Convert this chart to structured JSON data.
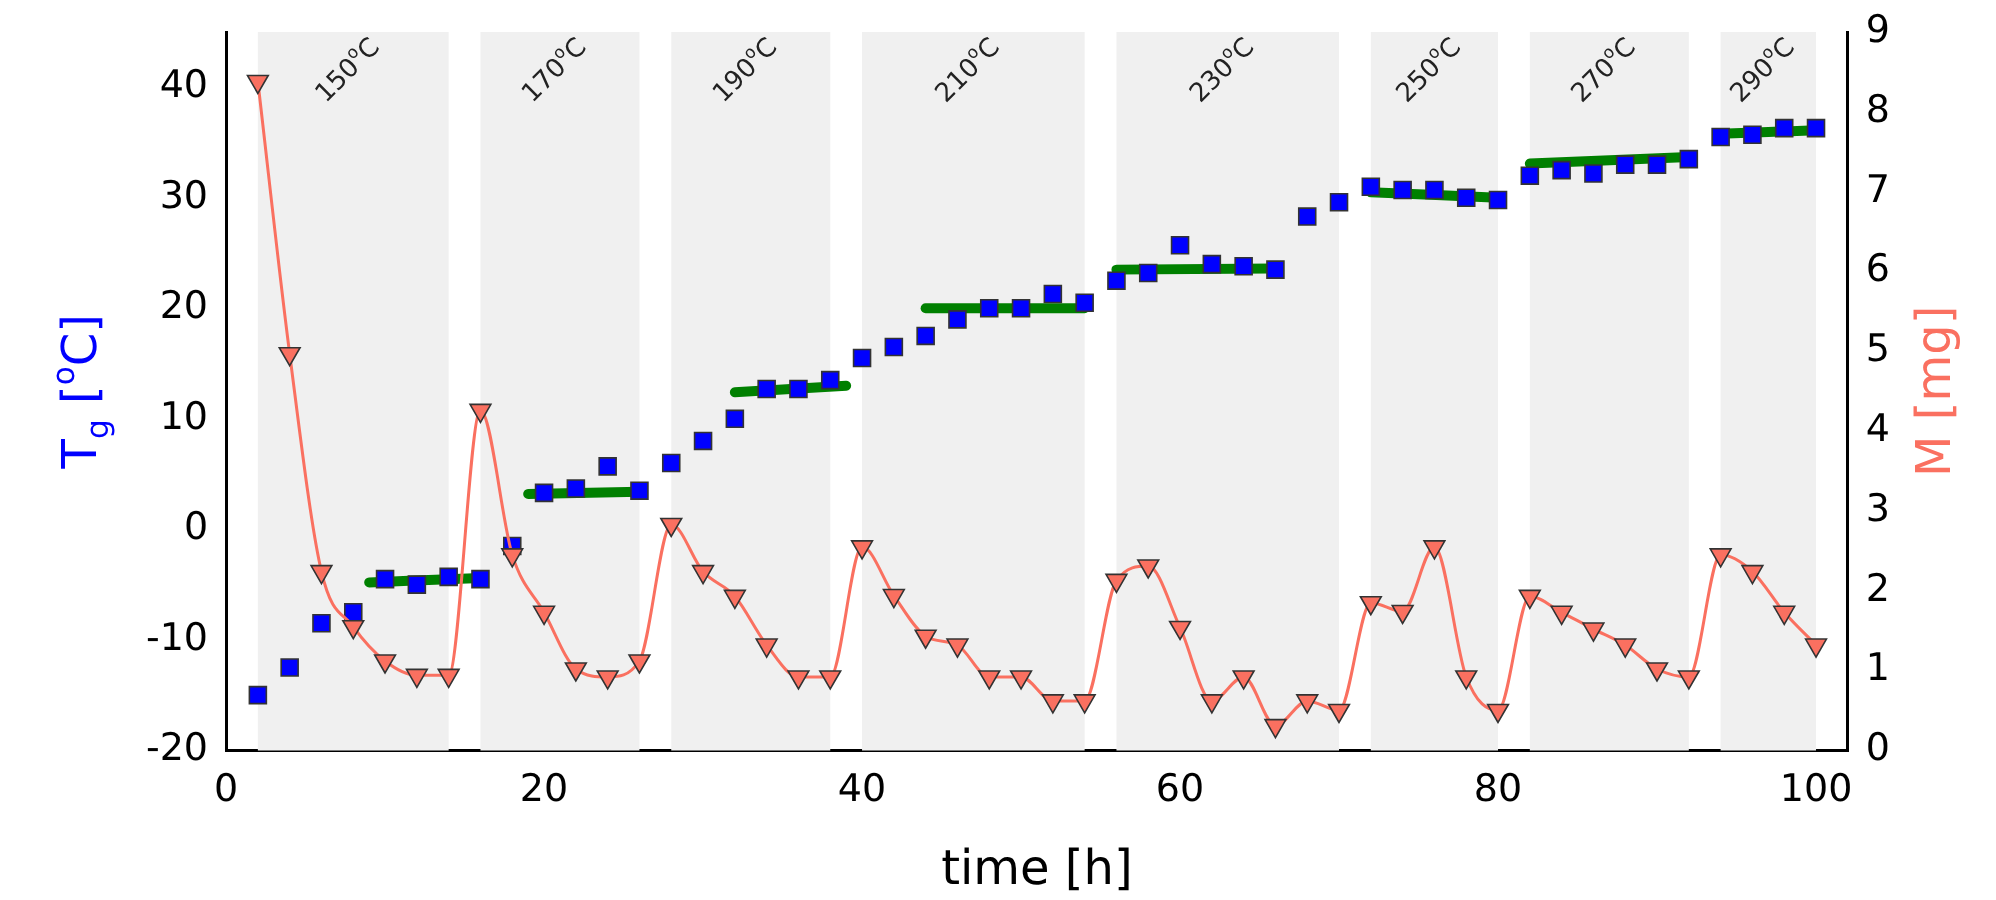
{
  "chart_data": {
    "type": "scatter",
    "xlabel": "time [h]",
    "ylabel": "T$_{g}$ [$^{o}$C]",
    "y2label": "M [mg]",
    "xlim": [
      0,
      102
    ],
    "xticks": [
      0,
      20,
      40,
      60,
      80,
      100
    ],
    "ylim": [
      -20,
      45
    ],
    "yticks": [
      -20,
      -10,
      0,
      10,
      20,
      30,
      40
    ],
    "y2lim": [
      0,
      9
    ],
    "y2ticks": [
      0,
      1,
      2,
      3,
      4,
      5,
      6,
      7,
      8,
      9
    ],
    "grid": false,
    "legend": false,
    "x": [
      2,
      4,
      6,
      8,
      10,
      12,
      14,
      16,
      18,
      20,
      22,
      24,
      26,
      28,
      30,
      32,
      34,
      36,
      38,
      40,
      42,
      44,
      46,
      48,
      50,
      52,
      54,
      56,
      58,
      60,
      62,
      64,
      66,
      68,
      70,
      72,
      74,
      76,
      78,
      80,
      82,
      84,
      86,
      88,
      90,
      92,
      94,
      96,
      98,
      100
    ],
    "series": [
      {
        "color": "#0000ff",
        "marker": "square",
        "values": [
          -15,
          -12.5,
          -8.5,
          -7.5,
          -4.5,
          -5,
          -4.3,
          -4.5,
          -1.5,
          3.3,
          3.7,
          5.7,
          3.5,
          6,
          8,
          10,
          12.7,
          12.7,
          13.5,
          15.5,
          16.5,
          17.5,
          19,
          20,
          20,
          21.3,
          20.5,
          22.5,
          23.2,
          25.7,
          24,
          23.8,
          23.5,
          28.3,
          29.6,
          31,
          30.7,
          30.7,
          30,
          29.8,
          32,
          32.5,
          32.2,
          33,
          33,
          33.5,
          35.5,
          35.7,
          36.3,
          36.3
        ]
      },
      {
        "type": "line",
        "axis": "y2",
        "color": "#fa7060",
        "marker": "triangle",
        "values": [
          8.38,
          4.97,
          2.24,
          1.55,
          1.12,
          0.94,
          0.94,
          4.26,
          2.45,
          1.73,
          1.02,
          0.92,
          1.12,
          2.83,
          2.24,
          1.93,
          1.32,
          0.92,
          0.92,
          2.55,
          1.94,
          1.43,
          1.32,
          0.92,
          0.92,
          0.62,
          0.62,
          2.13,
          2.31,
          1.54,
          0.62,
          0.92,
          0.31,
          0.62,
          0.5,
          1.85,
          1.74,
          2.55,
          0.92,
          0.5,
          1.93,
          1.73,
          1.52,
          1.32,
          1.02,
          0.92,
          2.45,
          2.24,
          1.73,
          1.32
        ]
      },
      {
        "type": "line",
        "color": "#008000",
        "marker": "none",
        "x": [
          9,
          16
        ],
        "values": [
          -4.8,
          -4.4
        ]
      },
      {
        "type": "line",
        "color": "#008000",
        "marker": "none",
        "x": [
          19,
          26
        ],
        "values": [
          3.2,
          3.4
        ]
      },
      {
        "type": "line",
        "color": "#008000",
        "marker": "none",
        "x": [
          32,
          39
        ],
        "values": [
          12.4,
          13
        ]
      },
      {
        "type": "line",
        "color": "#008000",
        "marker": "none",
        "x": [
          44,
          54
        ],
        "values": [
          20,
          20
        ]
      },
      {
        "type": "line",
        "color": "#008000",
        "marker": "none",
        "x": [
          56,
          66
        ],
        "values": [
          23.5,
          23.6
        ]
      },
      {
        "type": "line",
        "color": "#008000",
        "marker": "none",
        "x": [
          72,
          80
        ],
        "values": [
          30.5,
          30
        ]
      },
      {
        "type": "line",
        "color": "#008000",
        "marker": "none",
        "x": [
          82,
          92
        ],
        "values": [
          33.1,
          33.7
        ]
      },
      {
        "type": "line",
        "color": "#008000",
        "marker": "none",
        "x": [
          94,
          100
        ],
        "values": [
          35.8,
          36.1
        ]
      }
    ],
    "bands": [
      {
        "axis": "x",
        "from": 2,
        "to": 14,
        "label": "150$^{o}$C",
        "color": "#f0f0f0"
      },
      {
        "axis": "x",
        "from": 16,
        "to": 26,
        "label": "170$^{o}$C",
        "color": "#f0f0f0"
      },
      {
        "axis": "x",
        "from": 28,
        "to": 38,
        "label": "190$^{o}$C",
        "color": "#f0f0f0"
      },
      {
        "axis": "x",
        "from": 40,
        "to": 54,
        "label": "210$^{o}$C",
        "color": "#f0f0f0"
      },
      {
        "axis": "x",
        "from": 56,
        "to": 70,
        "label": "230$^{o}$C",
        "color": "#f0f0f0"
      },
      {
        "axis": "x",
        "from": 72,
        "to": 80,
        "label": "250$^{o}$C",
        "color": "#f0f0f0"
      },
      {
        "axis": "x",
        "from": 82,
        "to": 92,
        "label": "270$^{o}$C",
        "color": "#f0f0f0"
      },
      {
        "axis": "x",
        "from": 94,
        "to": 100,
        "label": "290$^{o}$C",
        "color": "#f0f0f0"
      }
    ]
  }
}
